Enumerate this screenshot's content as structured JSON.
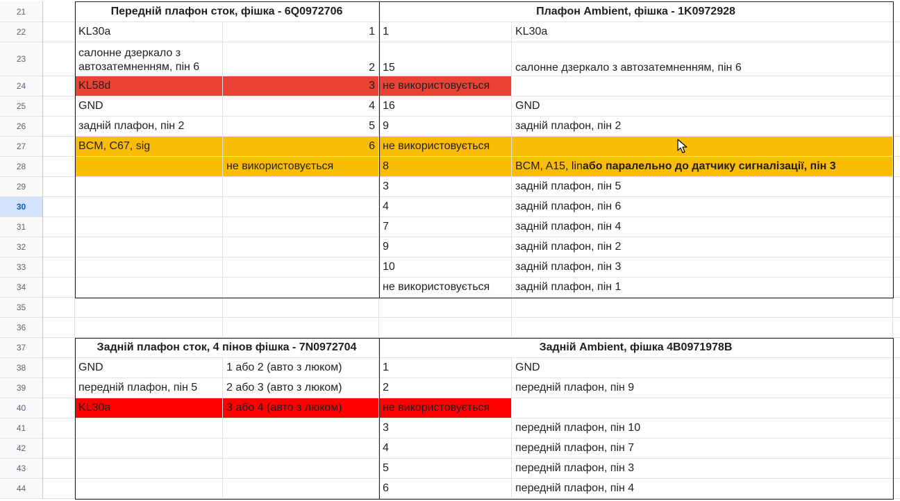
{
  "rows": [
    {
      "num": "21",
      "a": "",
      "b": "",
      "c": "",
      "d": ""
    },
    {
      "num": "22",
      "a": "KL30a",
      "b": "1",
      "c": "1",
      "d": "KL30a"
    },
    {
      "num": "23",
      "a": "салонне дзеркало з автозатемненням, пін 6",
      "b": "2",
      "c": "15",
      "d": "салонне дзеркало з автозатемненням, пін 6"
    },
    {
      "num": "24",
      "a": "KL58d",
      "b": "3",
      "c": "не використовується",
      "d": ""
    },
    {
      "num": "25",
      "a": "GND",
      "b": "4",
      "c": "16",
      "d": "GND"
    },
    {
      "num": "26",
      "a": "задній плафон, пін 2",
      "b": "5",
      "c": "9",
      "d": "задній плафон, пін 2"
    },
    {
      "num": "27",
      "a": "BCM, C67, sig",
      "b": "6",
      "c": "не використовується",
      "d": ""
    },
    {
      "num": "28",
      "a": "",
      "b": "не використовується",
      "c": "8",
      "d": "BCM, A15, lin",
      "d_bold": " або паралельно до датчику сигналізації, пін 3"
    },
    {
      "num": "29",
      "a": "",
      "b": "",
      "c": "3",
      "d": "задній плафон, пін 5"
    },
    {
      "num": "30",
      "a": "",
      "b": "",
      "c": "4",
      "d": "задній плафон, пін 6"
    },
    {
      "num": "31",
      "a": "",
      "b": "",
      "c": "7",
      "d": "задній плафон, пін 4"
    },
    {
      "num": "32",
      "a": "",
      "b": "",
      "c": "9",
      "d": "задній плафон, пін 2"
    },
    {
      "num": "33",
      "a": "",
      "b": "",
      "c": "10",
      "d": "задній плафон, пін 3"
    },
    {
      "num": "34",
      "a": "",
      "b": "",
      "c": "не використовується",
      "d": "задній плафон, пін 1"
    },
    {
      "num": "35",
      "a": "",
      "b": "",
      "c": "",
      "d": ""
    },
    {
      "num": "36",
      "a": "",
      "b": "",
      "c": "",
      "d": ""
    },
    {
      "num": "37",
      "a": "",
      "b": "",
      "c": "",
      "d": ""
    },
    {
      "num": "38",
      "a": "GND",
      "b": "1 або 2 (авто з люком)",
      "c": "1",
      "d": "GND"
    },
    {
      "num": "39",
      "a": "передній плафон, пін 5",
      "b": "2 або 3 (авто з люком)",
      "c": "2",
      "d": "передній плафон, пін 9"
    },
    {
      "num": "40",
      "a": "KL30a",
      "b": "3 або 4 (авто з люком)",
      "c": "не використовується",
      "d": ""
    },
    {
      "num": "41",
      "a": "",
      "b": "",
      "c": "3",
      "d": "передній плафон, пін 10"
    },
    {
      "num": "42",
      "a": "",
      "b": "",
      "c": "4",
      "d": "передній плафон, пін 7"
    },
    {
      "num": "43",
      "a": "",
      "b": "",
      "c": "5",
      "d": "передній плафон, пін 3"
    },
    {
      "num": "44",
      "a": "",
      "b": "",
      "c": "6",
      "d": "передній плафон, пін 4"
    }
  ],
  "headers": {
    "front_stock": "Передній плафон сток, фішка - 6Q0972706",
    "front_ambient": "Плафон Ambient, фішка - 1K0972928",
    "rear_stock": "Задній плафон сток, 4 пінов фішка - 7N0972704",
    "rear_ambient": "Задній Ambient, фішка 4B0971978B"
  },
  "colors": {
    "red": "#ea4335",
    "bright_red": "#ff0000",
    "orange": "#fbbc04",
    "active_row": "#d3e3fd"
  },
  "active_row": "30",
  "cursor_icon": "mouse-pointer-icon"
}
